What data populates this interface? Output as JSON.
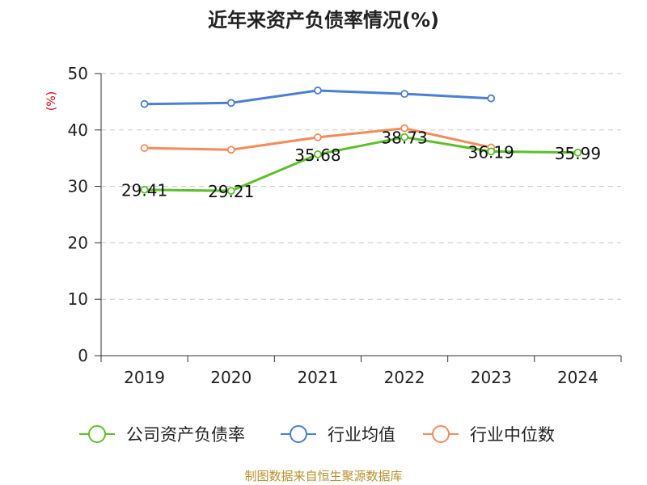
{
  "chart_data": {
    "type": "line",
    "title": "近年来资产负债率情况(%)",
    "ylabel": "(%)",
    "xlabel": "",
    "categories": [
      "2019",
      "2020",
      "2021",
      "2022",
      "2023",
      "2024"
    ],
    "ylim": [
      0,
      50
    ],
    "yticks": [
      0,
      10,
      20,
      30,
      40,
      50
    ],
    "grid": true,
    "legend_position": "bottom",
    "series": [
      {
        "name": "公司资产负债率",
        "color": "#5cbf2a",
        "values": [
          29.41,
          29.21,
          35.68,
          38.73,
          36.19,
          35.99
        ],
        "labels": [
          "29.41",
          "29.21",
          "35.68",
          "38.73",
          "36.19",
          "35.99"
        ]
      },
      {
        "name": "行业均值",
        "color": "#4a7fd4",
        "values": [
          44.6,
          44.8,
          47.0,
          46.4,
          45.6,
          null
        ]
      },
      {
        "name": "行业中位数",
        "color": "#f28c5a",
        "values": [
          36.8,
          36.5,
          38.7,
          40.3,
          36.9,
          null
        ]
      }
    ]
  },
  "footer": {
    "source": "制图数据来自恒生聚源数据库"
  }
}
